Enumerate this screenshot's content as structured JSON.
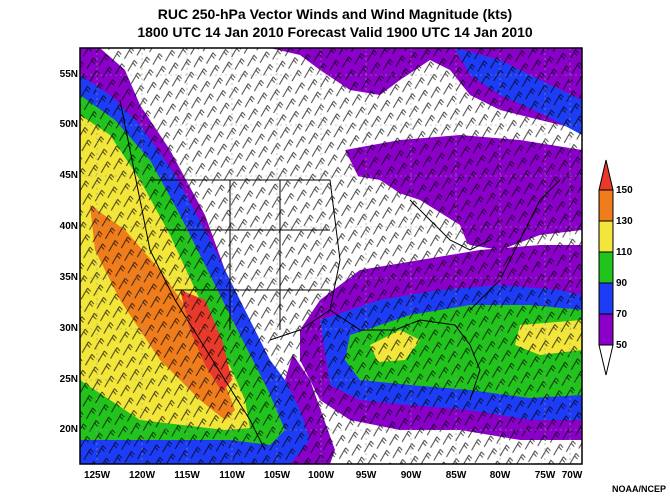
{
  "title_line1": "RUC 250-hPa Vector Winds and Wind Magnitude (kts)",
  "title_line2": "1800 UTC 14 Jan 2010 Forecast Valid 1900 UTC 14 Jan 2010",
  "lat_labels": [
    "55N",
    "50N",
    "45N",
    "40N",
    "35N",
    "30N",
    "25N",
    "20N"
  ],
  "lon_labels": [
    "125W",
    "120W",
    "115W",
    "110W",
    "105W",
    "100W",
    "95W",
    "90W",
    "85W",
    "80W",
    "75W",
    "70W"
  ],
  "colorbar": {
    "labels": [
      "150",
      "130",
      "110",
      "90",
      "70",
      "50"
    ],
    "colors": {
      "c150": "#e8392b",
      "c130": "#f07d1c",
      "c110": "#f3e63a",
      "c90": "#22c31c",
      "c70": "#1d3cf5",
      "c50": "#8a00c8",
      "low": "#ffffff"
    }
  },
  "credit": "NOAA/NCEP"
}
